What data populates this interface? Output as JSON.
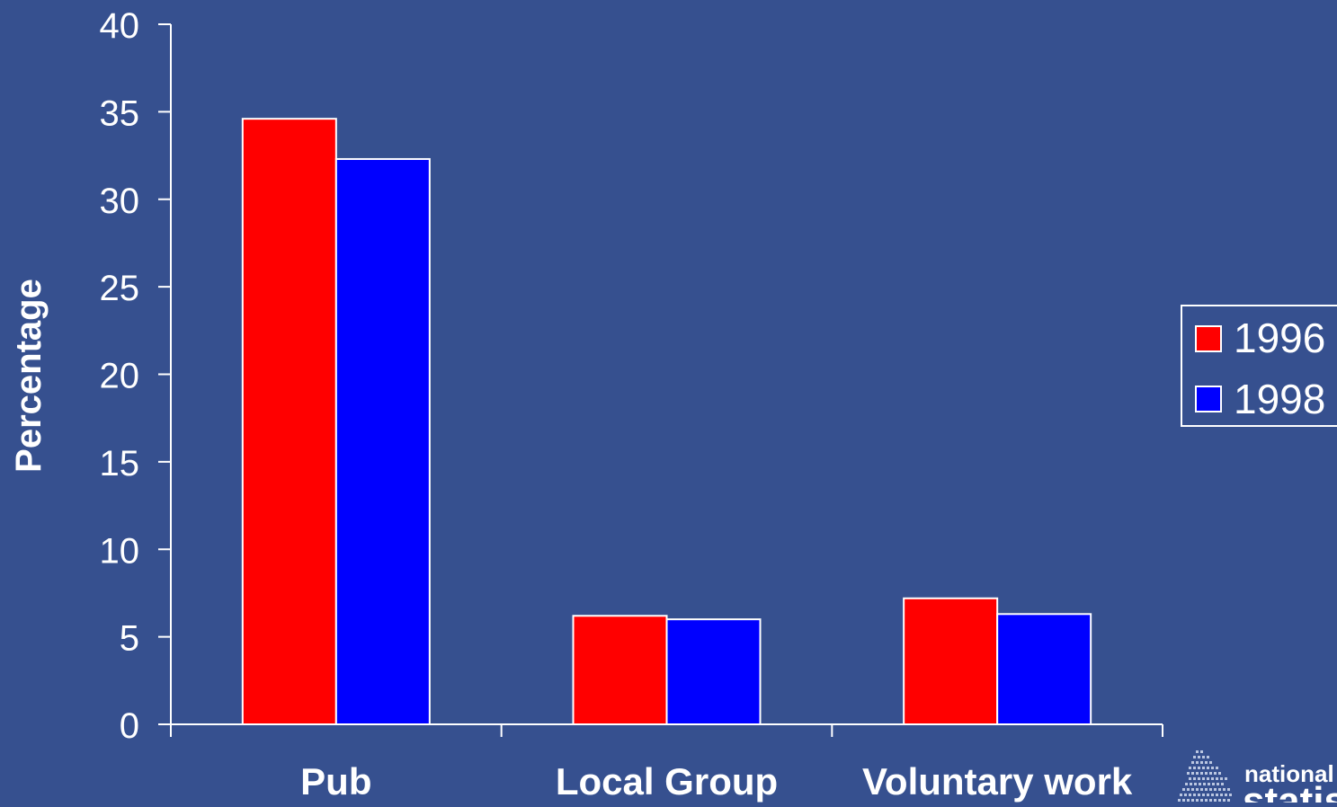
{
  "chart_data": {
    "type": "bar",
    "title": "",
    "xlabel": "",
    "ylabel": "Percentage",
    "ylim": [
      0,
      40
    ],
    "yticks": [
      0,
      5,
      10,
      15,
      20,
      25,
      30,
      35,
      40
    ],
    "categories": [
      "Pub",
      "Local Group",
      "Voluntary work"
    ],
    "series": [
      {
        "name": "1996",
        "color": "#ff0000",
        "values": [
          34.6,
          6.2,
          7.2
        ]
      },
      {
        "name": "1998",
        "color": "#0000ff",
        "values": [
          32.3,
          6.0,
          6.3
        ]
      }
    ],
    "legend_position": "right",
    "grid": false
  },
  "colors": {
    "background": "#36508f",
    "axis": "#ffffff",
    "text": "#ffffff",
    "bar_outline": "#ffffff"
  },
  "logo": {
    "text_top": "national",
    "text_bottom": "statistics"
  }
}
